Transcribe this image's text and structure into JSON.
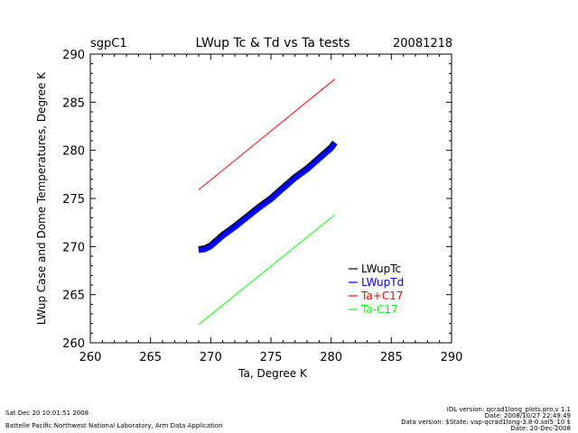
{
  "header": {
    "site": "sgpC1",
    "title": "LWup Tc & Td vs Ta tests",
    "date": "20081218"
  },
  "footer": {
    "run_time": "Sat Dec 20 10:01:51 2008",
    "organization": "Battelle Pacific Northwest National Laboratory, Arm Data Application",
    "idl_version": "IDL version: qcrad1long_plots.pro,v 1.1",
    "idl_date": "Date: 2008/10/27 22:49:49",
    "data_version": "Data version: $State: vap-qcrad1long-3.8-0.sol5_10 $",
    "data_date": "Date: 20-Dec-2008"
  },
  "colors": {
    "LWupTc": "#000000",
    "LWupTd": "#0000ff",
    "Ta+C17": "#ff0000",
    "Ta-C17": "#00ff00"
  },
  "chart_data": {
    "type": "scatter",
    "title": "LWup Tc & Td vs Ta tests",
    "xlabel": "Ta, Degree K",
    "ylabel": "LWup Case and Dome Temperatures, Degree K",
    "xlim": [
      260,
      290
    ],
    "ylim": [
      260,
      290
    ],
    "xticks": [
      260,
      265,
      270,
      275,
      280,
      285,
      290
    ],
    "yticks": [
      260,
      265,
      270,
      275,
      280,
      285,
      290
    ],
    "grid": false,
    "legend_position": "bottom-right",
    "series": [
      {
        "name": "LWupTc",
        "kind": "points",
        "x": [
          269.0,
          269.5,
          270.0,
          271.0,
          272.0,
          273.0,
          274.0,
          275.0,
          276.0,
          277.0,
          278.0,
          279.0,
          280.0,
          280.3
        ],
        "y": [
          269.7,
          269.8,
          270.1,
          271.2,
          272.1,
          273.1,
          274.1,
          275.0,
          276.1,
          277.2,
          278.1,
          279.2,
          280.3,
          280.8
        ]
      },
      {
        "name": "LWupTd",
        "kind": "points",
        "x": [
          269.0,
          269.5,
          270.0,
          271.0,
          272.0,
          273.0,
          274.0,
          275.0,
          276.0,
          277.0,
          278.0,
          279.0,
          280.0,
          280.3
        ],
        "y": [
          269.6,
          269.7,
          270.0,
          271.1,
          272.0,
          273.0,
          274.0,
          274.9,
          276.0,
          277.1,
          278.0,
          279.1,
          280.2,
          280.7
        ]
      },
      {
        "name": "Ta+C17",
        "kind": "line",
        "x": [
          269.0,
          280.3
        ],
        "y": [
          275.9,
          287.4
        ]
      },
      {
        "name": "Ta-C17",
        "kind": "line",
        "x": [
          269.0,
          280.3
        ],
        "y": [
          261.9,
          273.3
        ]
      }
    ]
  }
}
